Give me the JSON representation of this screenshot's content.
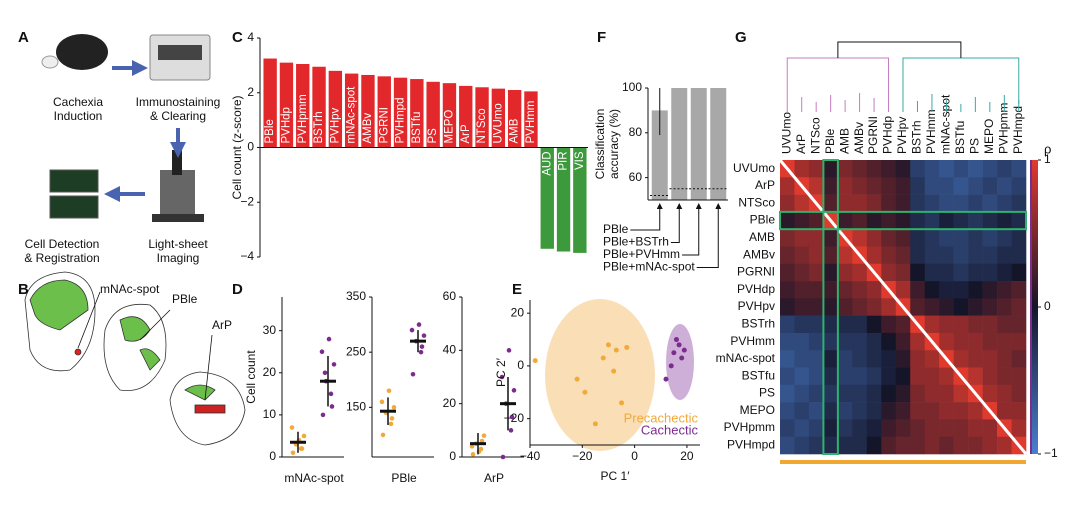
{
  "panel_labels": [
    "A",
    "B",
    "C",
    "D",
    "E",
    "F",
    "G"
  ],
  "panel_a": {
    "steps": [
      [
        "Cachexia",
        "Induction"
      ],
      [
        "Immunostaining",
        "& Clearing"
      ],
      [
        "Light-sheet",
        "Imaging"
      ],
      [
        "Cell Detection",
        "& Registration"
      ]
    ]
  },
  "panel_b": {
    "labels": [
      "mNAc-spot",
      "PBle",
      "ArP"
    ]
  },
  "chart_data": [
    {
      "type": "bar",
      "ylabel": "Cell count (z-score)",
      "categories": [
        "PBle",
        "PVHdp",
        "PVHpmm",
        "BSTrh",
        "PVHpv",
        "mNAc-spot",
        "AMBv",
        "PGRNI",
        "PVHmpd",
        "BSTfu",
        "PS",
        "MEPO",
        "ArP",
        "NTSco",
        "UVUmo",
        "AMB",
        "PVHmm",
        "AUD",
        "PIR",
        "VIS"
      ],
      "values": [
        3.25,
        3.1,
        3.05,
        2.95,
        2.8,
        2.7,
        2.65,
        2.6,
        2.55,
        2.5,
        2.4,
        2.35,
        2.25,
        2.2,
        2.15,
        2.1,
        2.05,
        -3.7,
        -3.8,
        -3.85
      ],
      "color_positive": "#e2282b",
      "color_negative": "#3c9a3c",
      "ylim": [
        -4,
        4
      ],
      "yticks": [
        {
          "value": -4,
          "label": "−4"
        },
        {
          "value": -2,
          "label": "−2"
        },
        0,
        2,
        4
      ]
    },
    {
      "type": "strip",
      "xlabel": "mNAc-spot",
      "ylabel": "Cell count",
      "ylim": [
        0,
        38
      ],
      "yticks": [
        0,
        10,
        20,
        30
      ],
      "series": [
        {
          "color": "#f2a93b",
          "values": [
            1,
            2,
            3,
            5,
            7,
            4,
            2
          ],
          "mean": 3.5,
          "error": 2.5
        },
        {
          "color": "#7b2d8e",
          "values": [
            10,
            15,
            18,
            22,
            25,
            28,
            12,
            20
          ],
          "mean": 18,
          "error": 6
        }
      ]
    },
    {
      "type": "strip",
      "xlabel": "PBle",
      "ylim": [
        60,
        350
      ],
      "yticks": [
        150,
        250,
        350
      ],
      "series": [
        {
          "color": "#f2a93b",
          "values": [
            100,
            120,
            140,
            150,
            160,
            180,
            130
          ],
          "mean": 143,
          "error": 25
        },
        {
          "color": "#7b2d8e",
          "values": [
            210,
            250,
            270,
            280,
            290,
            300,
            260
          ],
          "mean": 270,
          "error": 20
        }
      ]
    },
    {
      "type": "strip",
      "xlabel": "ArP",
      "ylim": [
        0,
        60
      ],
      "yticks": [
        0,
        20,
        40,
        60
      ],
      "series": [
        {
          "color": "#f2a93b",
          "values": [
            1,
            3,
            5,
            8,
            4,
            2,
            6
          ],
          "mean": 5,
          "error": 4
        },
        {
          "color": "#7b2d8e",
          "values": [
            0,
            10,
            20,
            25,
            30,
            40,
            15
          ],
          "mean": 20,
          "error": 10
        }
      ]
    },
    {
      "type": "scatter",
      "xlabel": "PC 1′",
      "ylabel": "PC 2′",
      "xlim": [
        -40,
        25
      ],
      "xticks": [
        {
          "value": -40,
          "label": "−40"
        },
        {
          "value": -20,
          "label": "−20"
        },
        0,
        20
      ],
      "ylim": [
        -30,
        25
      ],
      "yticks": [
        {
          "value": -20,
          "label": "−20"
        },
        0,
        20
      ],
      "series": [
        {
          "name": "Precachectic",
          "color": "#f2a93b",
          "x": [
            -38,
            -22,
            -19,
            -15,
            -12,
            -10,
            -8,
            -5,
            -3,
            -7
          ],
          "y": [
            2,
            -5,
            -10,
            -22,
            3,
            8,
            -2,
            -14,
            7,
            6
          ]
        },
        {
          "name": "Cachectic",
          "color": "#7b2d8e",
          "x": [
            12,
            14,
            15,
            16,
            17,
            18,
            19
          ],
          "y": [
            -5,
            0,
            5,
            10,
            8,
            3,
            6
          ]
        }
      ]
    },
    {
      "type": "bar",
      "ylabel": [
        "Classification",
        "accuracy (%)"
      ],
      "categories": [
        "PBle",
        "PBle+BSTrh",
        "PBle+PVHmm",
        "PBle+mNAc-spot"
      ],
      "values": [
        90,
        100,
        100,
        100
      ],
      "errors": [
        11,
        0,
        0,
        0
      ],
      "chance": [
        52,
        55,
        55,
        55
      ],
      "color": "#a8a8a8",
      "ylim": [
        50,
        100
      ],
      "yticks": [
        60,
        80,
        100
      ]
    },
    {
      "type": "heatmap",
      "rows": [
        "UVUmo",
        "ArP",
        "NTSco",
        "PBle",
        "AMB",
        "AMBv",
        "PGRNI",
        "PVHdp",
        "PVHpv",
        "BSTrh",
        "PVHmm",
        "mNAc-spot",
        "BSTfu",
        "PS",
        "MEPO",
        "PVHpmm",
        "PVHmpd"
      ],
      "columns": [
        "UVUmo",
        "ArP",
        "NTSco",
        "PBle",
        "AMB",
        "AMBv",
        "PGRNI",
        "PVHdp",
        "PVHpv",
        "BSTrh",
        "PVHmm",
        "mNAc-spot",
        "BSTfu",
        "PS",
        "MEPO",
        "PVHpmm",
        "PVHmpd"
      ],
      "values": [
        [
          1,
          0.7,
          0.6,
          0.1,
          0.5,
          0.4,
          0.3,
          0.2,
          0.1,
          -0.4,
          -0.5,
          -0.6,
          -0.5,
          -0.6,
          -0.5,
          -0.4,
          -0.5
        ],
        [
          0.7,
          1,
          0.8,
          0.2,
          0.6,
          0.5,
          0.4,
          0.3,
          0.2,
          -0.3,
          -0.5,
          -0.5,
          -0.6,
          -0.5,
          -0.4,
          -0.5,
          -0.4
        ],
        [
          0.6,
          0.8,
          1,
          0.3,
          0.6,
          0.6,
          0.5,
          0.3,
          0.2,
          -0.3,
          -0.4,
          -0.5,
          -0.5,
          -0.4,
          -0.5,
          -0.4,
          -0.3
        ],
        [
          0.1,
          0.2,
          0.3,
          1,
          0.2,
          0.3,
          0.1,
          0.2,
          0.1,
          -0.2,
          -0.3,
          -0.1,
          -0.2,
          -0.3,
          -0.2,
          -0.1,
          -0.2
        ],
        [
          0.5,
          0.6,
          0.6,
          0.2,
          1,
          0.8,
          0.6,
          0.4,
          0.3,
          -0.2,
          -0.3,
          -0.4,
          -0.4,
          -0.3,
          -0.4,
          -0.3,
          -0.2
        ],
        [
          0.4,
          0.5,
          0.6,
          0.3,
          0.8,
          1,
          0.7,
          0.5,
          0.4,
          -0.2,
          -0.3,
          -0.3,
          -0.4,
          -0.3,
          -0.3,
          -0.2,
          -0.2
        ],
        [
          0.3,
          0.4,
          0.5,
          0.1,
          0.6,
          0.7,
          1,
          0.6,
          0.5,
          0,
          -0.2,
          -0.2,
          -0.3,
          -0.2,
          -0.2,
          -0.1,
          0
        ],
        [
          0.2,
          0.3,
          0.3,
          0.2,
          0.4,
          0.5,
          0.6,
          1,
          0.7,
          0.2,
          0,
          -0.1,
          -0.1,
          0,
          0.1,
          0.2,
          0.3
        ],
        [
          0.1,
          0.2,
          0.2,
          0.1,
          0.3,
          0.4,
          0.5,
          0.7,
          1,
          0.3,
          0.2,
          0.1,
          0,
          0.1,
          0.2,
          0.3,
          0.4
        ],
        [
          -0.4,
          -0.3,
          -0.3,
          -0.2,
          -0.2,
          -0.2,
          0,
          0.2,
          0.3,
          1,
          0.7,
          0.6,
          0.6,
          0.5,
          0.5,
          0.4,
          0.4
        ],
        [
          -0.5,
          -0.5,
          -0.4,
          -0.3,
          -0.3,
          -0.3,
          -0.2,
          0,
          0.2,
          0.7,
          1,
          0.7,
          0.6,
          0.6,
          0.5,
          0.5,
          0.5
        ],
        [
          -0.6,
          -0.5,
          -0.5,
          -0.1,
          -0.4,
          -0.3,
          -0.2,
          -0.1,
          0.1,
          0.6,
          0.7,
          1,
          0.7,
          0.6,
          0.6,
          0.5,
          0.4
        ],
        [
          -0.5,
          -0.6,
          -0.5,
          -0.2,
          -0.4,
          -0.4,
          -0.3,
          -0.1,
          0,
          0.6,
          0.6,
          0.7,
          1,
          0.8,
          0.6,
          0.5,
          0.5
        ],
        [
          -0.6,
          -0.5,
          -0.4,
          -0.3,
          -0.3,
          -0.3,
          -0.2,
          0,
          0.1,
          0.5,
          0.6,
          0.6,
          0.8,
          1,
          0.7,
          0.6,
          0.5
        ],
        [
          -0.5,
          -0.4,
          -0.5,
          -0.2,
          -0.4,
          -0.3,
          -0.2,
          0.1,
          0.2,
          0.5,
          0.5,
          0.6,
          0.6,
          0.7,
          1,
          0.6,
          0.6
        ],
        [
          -0.4,
          -0.5,
          -0.4,
          -0.1,
          -0.3,
          -0.2,
          -0.1,
          0.2,
          0.3,
          0.4,
          0.5,
          0.5,
          0.5,
          0.6,
          0.6,
          1,
          0.7
        ],
        [
          -0.5,
          -0.4,
          -0.3,
          -0.2,
          -0.2,
          -0.2,
          0,
          0.3,
          0.4,
          0.4,
          0.5,
          0.4,
          0.5,
          0.5,
          0.6,
          0.7,
          1
        ]
      ],
      "colorbar_label": "ρ",
      "clim": [
        -1,
        1
      ],
      "cticks": [
        1,
        0,
        {
          "value": -1,
          "label": "−1"
        }
      ],
      "colors": [
        "#4a7fd0",
        "#15152a",
        "#e03a2e"
      ]
    }
  ]
}
